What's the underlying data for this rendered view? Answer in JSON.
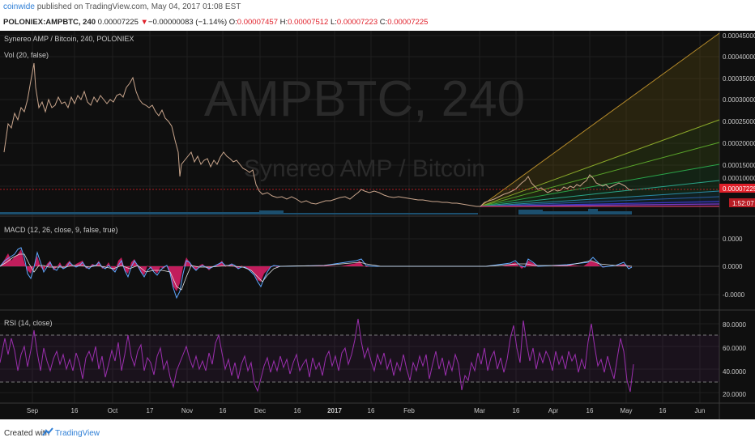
{
  "header": {
    "author": "coinwide",
    "published_text": "published on TradingView.com, May 04, 2017 01:08 EST",
    "symbol": "POLONIEX:AMPBTC, 240",
    "last": "0.00007225",
    "change_arrow": "▼",
    "change": "−0.00000083 (−1.14%)",
    "o_label": "O:",
    "o_value": "0.00007457",
    "h_label": "H:",
    "h_value": "0.00007512",
    "l_label": "L:",
    "l_value": "0.00007223",
    "c_label": "C:",
    "c_value": "0.00007225"
  },
  "main_pane": {
    "title": "Synereo AMP / Bitcoin, 240, POLONIEX",
    "vol_label": "Vol (20, false)",
    "watermark_big": "AMPBTC, 240",
    "watermark_small": "Synereo AMP / Bitcoin",
    "price_ticks": [
      "0.00045000",
      "0.00040000",
      "0.00035000",
      "0.00030000",
      "0.00025000",
      "0.00020000",
      "0.00015000",
      "0.00010000"
    ],
    "last_price_tag": "0.00007225",
    "countdown_tag": "1:52:07"
  },
  "macd_pane": {
    "label": "MACD (12, 26, close, 9, false, true)",
    "ticks": [
      "0.0000",
      "0.0000",
      "-0.0000"
    ]
  },
  "rsi_pane": {
    "label": "RSI (14, close)",
    "ticks": [
      "80.0000",
      "60.0000",
      "40.0000",
      "20.0000"
    ]
  },
  "time_axis": [
    "Sep",
    "16",
    "Oct",
    "17",
    "Nov",
    "16",
    "Dec",
    "16",
    "2017",
    "16",
    "Feb",
    "Mar",
    "16",
    "Apr",
    "16",
    "May",
    "16",
    "Jun"
  ],
  "footer": {
    "created_with": "Created with",
    "brand": "TradingView"
  },
  "colors": {
    "background": "#0f0f0f",
    "candle": "#c9a58c",
    "price_line": "#e0202a",
    "macd_hist": "#e0206a",
    "macd_line": "#5fa8ff",
    "signal_line": "#e0e0e0",
    "rsi_line": "#9b2fae",
    "link": "#2f7fd6"
  },
  "chart_data": [
    {
      "type": "line",
      "title": "Synereo AMP / Bitcoin, 240, POLONIEX",
      "x": [
        "Sep",
        "Sep 16",
        "Oct",
        "Oct 17",
        "Nov",
        "Nov 16",
        "Dec",
        "Dec 16",
        "2017",
        "Jan 16",
        "Feb",
        "Mar",
        "Mar 16",
        "Apr",
        "Apr 16",
        "May"
      ],
      "series": [
        {
          "name": "AMPBTC",
          "values": [
            0.00032,
            0.00033,
            0.00031,
            0.00032,
            0.00025,
            0.00015,
            0.0001,
            6e-05,
            5e-05,
            6e-05,
            5e-05,
            3e-05,
            7e-05,
            8e-05,
            9e-05,
            7.225e-05
          ]
        }
      ],
      "ylim": [
        0,
        0.00045
      ]
    },
    {
      "type": "line",
      "title": "RSI (14, close)",
      "ylim": [
        15,
        90
      ],
      "reference_levels": [
        70,
        30
      ]
    }
  ]
}
